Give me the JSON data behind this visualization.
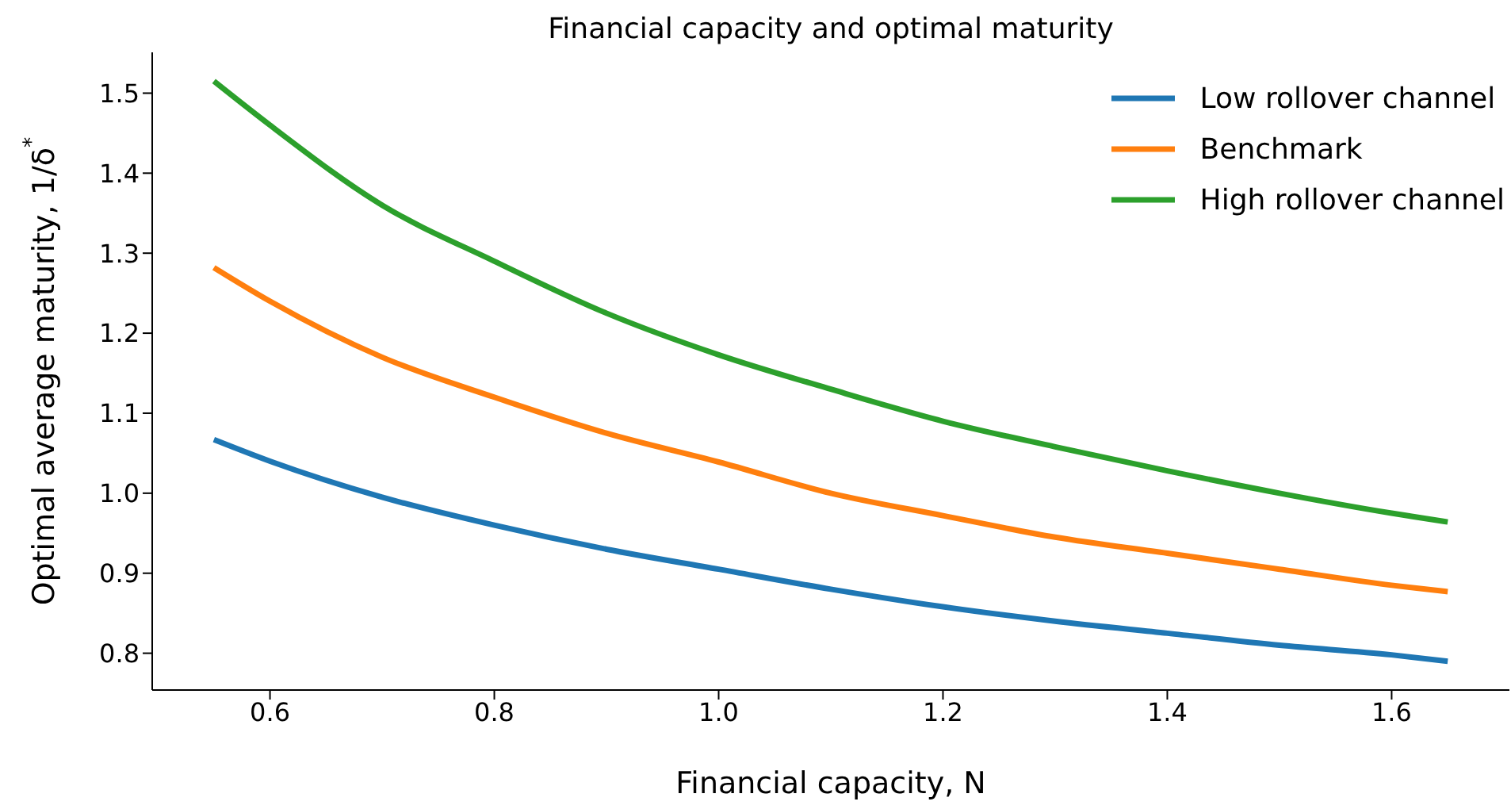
{
  "chart_data": {
    "type": "line",
    "title": "Financial capacity and optimal maturity",
    "xlabel": "Financial capacity, N",
    "ylabel": "Optimal average maturity, 1/δ$^{*}$",
    "x": [
      0.55,
      0.6,
      0.7,
      0.8,
      0.9,
      1.0,
      1.1,
      1.2,
      1.3,
      1.4,
      1.5,
      1.6,
      1.65
    ],
    "series": [
      {
        "name": "Low rollover channel",
        "color": "#1f77b4",
        "values": [
          1.067,
          1.04,
          0.995,
          0.96,
          0.93,
          0.905,
          0.88,
          0.858,
          0.84,
          0.825,
          0.81,
          0.798,
          0.79
        ]
      },
      {
        "name": "Benchmark",
        "color": "#ff7f0e",
        "values": [
          1.282,
          1.24,
          1.17,
          1.12,
          1.075,
          1.039,
          1.0,
          0.972,
          0.945,
          0.925,
          0.905,
          0.885,
          0.877
        ]
      },
      {
        "name": "High rollover channel",
        "color": "#2ca02c",
        "values": [
          1.515,
          1.46,
          1.36,
          1.29,
          1.225,
          1.173,
          1.13,
          1.09,
          1.058,
          1.028,
          1.0,
          0.975,
          0.964
        ]
      }
    ],
    "xlim": [
      0.495,
      1.705
    ],
    "ylim": [
      0.754,
      1.551
    ],
    "xticks": [
      0.6,
      0.8,
      {
        "value": 1,
        "label": "1.0"
      },
      1.2,
      1.4,
      1.6
    ],
    "yticks": [
      0.8,
      0.9,
      {
        "value": 1,
        "label": "1.0"
      },
      1.1,
      1.2,
      1.3,
      1.4,
      1.5
    ],
    "legend": "top right",
    "grid": false,
    "marker": "none",
    "line_style": "solid"
  }
}
